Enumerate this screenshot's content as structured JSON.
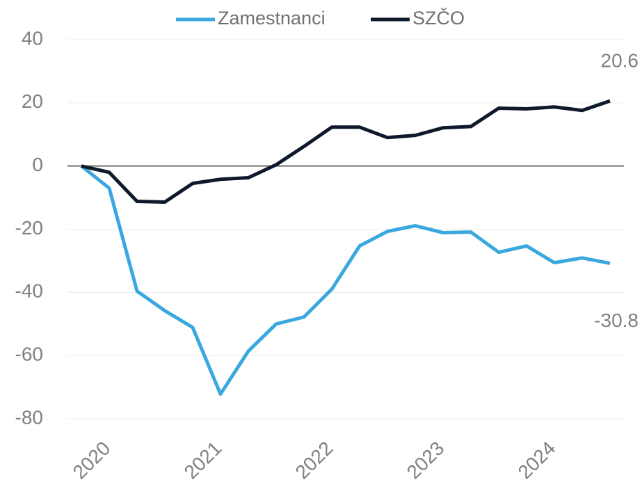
{
  "chart_data": {
    "type": "line",
    "categories": [
      "2020",
      null,
      null,
      null,
      "2021",
      null,
      null,
      null,
      "2022",
      null,
      null,
      null,
      "2023",
      null,
      null,
      null,
      "2024",
      null,
      null,
      null
    ],
    "series": [
      {
        "name": "Zamestnanci",
        "color": "#3aa8df",
        "values": [
          0,
          -7,
          -39.6,
          -45.8,
          -51.1,
          -72.2,
          -58.6,
          -50,
          -47.8,
          -39,
          -25.3,
          -20.7,
          -18.9,
          -21.1,
          -20.9,
          -27.3,
          -25.3,
          -30.6,
          -29.1,
          -30.8
        ]
      },
      {
        "name": "SZČO",
        "color": "#0e1a2b",
        "values": [
          0,
          -2,
          -11.2,
          -11.4,
          -5.5,
          -4.2,
          -3.7,
          0.4,
          6.2,
          12.3,
          12.3,
          9,
          9.7,
          12.1,
          12.5,
          18.3,
          18.1,
          18.7,
          17.6,
          20.6
        ]
      }
    ],
    "ylim": [
      -80,
      40
    ],
    "yticks": [
      -80,
      -60,
      -40,
      -20,
      0,
      20,
      40
    ],
    "grid": true,
    "zero_line": true,
    "legend": "top"
  }
}
